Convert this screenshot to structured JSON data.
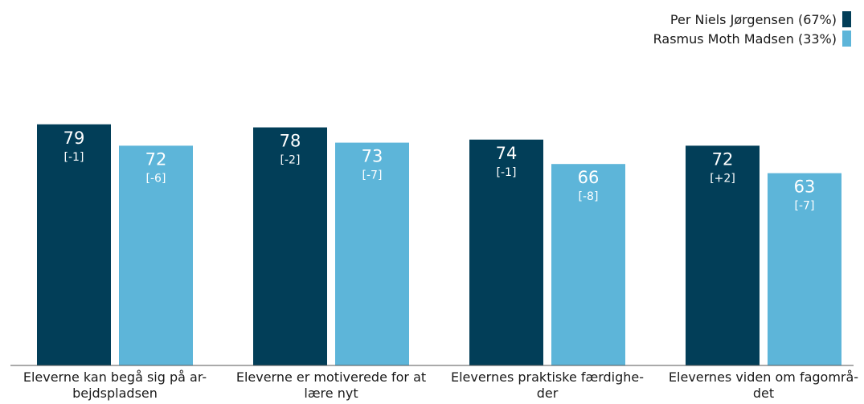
{
  "chart_data": {
    "type": "bar",
    "categories": [
      "Eleverne kan begå sig på ar- bejdspladsen",
      "Eleverne er motiverede for at lære nyt",
      "Elevernes praktiske færdighe- der",
      "Elevernes viden om fagområ- det"
    ],
    "category_lines": [
      [
        "Eleverne kan begå sig på ar-",
        "bejdspladsen"
      ],
      [
        "Eleverne er motiverede for at",
        "lære nyt"
      ],
      [
        "Elevernes praktiske færdighe-",
        "der"
      ],
      [
        "Elevernes viden om fagområ-",
        "det"
      ]
    ],
    "series": [
      {
        "name": "Per Niels Jørgensen (67%)",
        "color": "#023e58",
        "values": [
          79,
          78,
          74,
          72
        ],
        "changes": [
          "[-1]",
          "[-2]",
          "[-1]",
          "[+2]"
        ]
      },
      {
        "name": "Rasmus Moth Madsen (33%)",
        "color": "#5db5d9",
        "values": [
          72,
          73,
          66,
          63
        ],
        "changes": [
          "[-6]",
          "[-7]",
          "[-8]",
          "[-7]"
        ]
      }
    ],
    "ylim": [
      0,
      100
    ],
    "grid": false,
    "legend_position": "top-right"
  }
}
